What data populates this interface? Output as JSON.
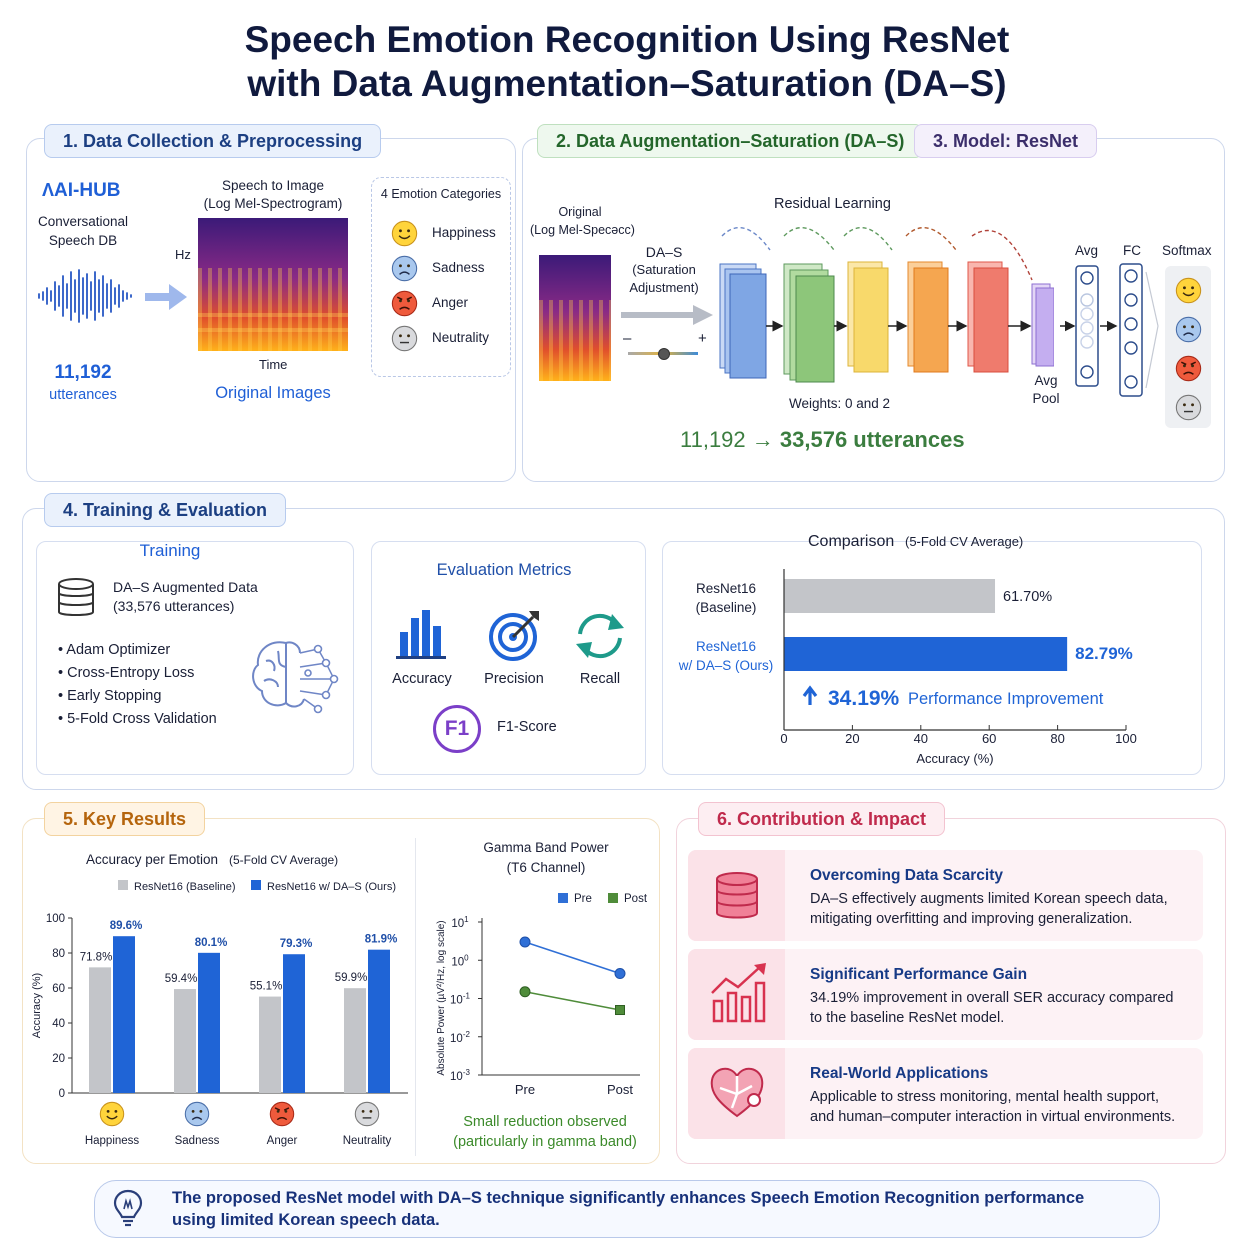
{
  "title": {
    "line1": "Speech Emotion Recognition Using ResNet",
    "line2": "with Data Augmentation–Saturation (DA–S)"
  },
  "colors": {
    "navy": "#101a3e",
    "blue": "#1f64d6",
    "green": "#3b7d3f",
    "gray_bar": "#c3c5c9",
    "pink": "#c02a4c",
    "orange": "#b5650d"
  },
  "section1": {
    "tag": "1.  Data Collection & Preprocessing",
    "logo": "AI-HUB",
    "db_line1": "Conversational",
    "db_line2": "Speech DB",
    "count": "11,192",
    "count_unit": "utterances",
    "spec_title1": "Speech to Image",
    "spec_title2": "(Log Mel-Spectrogram)",
    "hz_label": "Hz",
    "time_label": "Time",
    "original_images": "Original Images",
    "emotions_title": "4 Emotion Categories",
    "emotions": [
      "Happiness",
      "Sadness",
      "Anger",
      "Neutrality"
    ]
  },
  "section2": {
    "tag": "2.  Data Augmentation–Saturation (DA–S)",
    "original_line1": "Original",
    "original_line2": "(Log Mel-Specəcc)",
    "das_line1": "DA–S",
    "das_line2": "(Saturation",
    "das_line3": "Adjustment)",
    "minus": "–",
    "plus": "+",
    "result_from": "11,192",
    "arrow": "→",
    "result_to": "33,576 utterances"
  },
  "section3": {
    "tag": "3.  Model: ResNet",
    "residual_learning": "Residual Learning",
    "weights": "Weights: 0 and 2",
    "avg": "Avg",
    "fc": "FC",
    "softmax": "Softmax",
    "avg_pool_line1": "Avg",
    "avg_pool_line2": "Pool"
  },
  "section4": {
    "tag": "4.  Training & Evaluation",
    "training_title": "Training",
    "data_line1": "DA–S Augmented Data",
    "data_line2": "(33,576 utterances)",
    "bullets": [
      "Adam Optimizer",
      "Cross-Entropy Loss",
      "Early Stopping",
      "5-Fold Cross Validation"
    ],
    "metrics_title": "Evaluation Metrics",
    "metrics": [
      "Accuracy",
      "Precision",
      "Recall",
      "F1-Score"
    ],
    "f1_icon_text": "F1"
  },
  "section5": {
    "tag": "5.  Key Results",
    "gamma_title1": "Gamma Band Power",
    "gamma_title2": "(T6 Channel)",
    "gamma_note1": "Small reduction observed",
    "gamma_note2": "(particularly in gamma band)"
  },
  "section6": {
    "tag": "6.  Contribution & Impact",
    "items": [
      {
        "title": "Overcoming Data Scarcity",
        "line1": "DA–S effectively augments limited Korean speech data,",
        "line2": "mitigating overfitting and improving generalization."
      },
      {
        "title": "Significant Performance Gain",
        "line1": "34.19% improvement in overall SER accuracy compared",
        "line2": "to the baseline ResNet model."
      },
      {
        "title": "Real-World Applications",
        "line1": "Applicable to stress monitoring, mental health support,",
        "line2": "and human–computer interaction in virtual environments."
      }
    ]
  },
  "footer": {
    "line1": "The proposed ResNet model with DA–S technique significantly enhances Speech Emotion Recognition performance",
    "line2": "using limited Korean speech data."
  },
  "chart_data": [
    {
      "type": "bar",
      "orientation": "horizontal",
      "title": "Comparison",
      "subtitle": "(5-Fold CV Average)",
      "categories": [
        [
          "ResNet16",
          "(Baseline)"
        ],
        [
          "ResNet16",
          "w/ DA–S (Ours)"
        ]
      ],
      "values": [
        61.7,
        82.79
      ],
      "value_labels": [
        "61.70%",
        "82.79%"
      ],
      "xlabel": "Accuracy (%)",
      "xlim": [
        0,
        100
      ],
      "xticks": [
        0,
        20,
        40,
        60,
        80,
        100
      ],
      "annotation_value": "34.19%",
      "annotation_text": "Performance Improvement"
    },
    {
      "type": "bar",
      "title": "Accuracy per Emotion",
      "subtitle": "(5-Fold CV Average)",
      "categories": [
        "Happiness",
        "Sadness",
        "Anger",
        "Neutrality"
      ],
      "series": [
        {
          "name": "ResNet16 (Baseline)",
          "values": [
            71.8,
            59.4,
            55.1,
            59.9
          ],
          "labels": [
            "71.8%",
            "59.4%",
            "55.1%",
            "59.9%"
          ],
          "color": "#c3c5c9"
        },
        {
          "name": "ResNet16 w/ DA–S (Ours)",
          "values": [
            89.6,
            80.1,
            79.3,
            81.9
          ],
          "labels": [
            "89.6%",
            "80.1%",
            "79.3%",
            "81.9%"
          ],
          "color": "#1f64d6"
        }
      ],
      "ylabel": "Accuracy (%)",
      "ylim": [
        0,
        100
      ],
      "yticks": [
        0,
        20,
        40,
        60,
        80,
        100
      ],
      "legend": "top"
    },
    {
      "type": "line",
      "categories": [
        "Pre",
        "Post"
      ],
      "series": [
        {
          "name": "Pre",
          "values": [
            3.0,
            0.45
          ],
          "color": "#2f6fd6",
          "marker": "circle"
        },
        {
          "name": "Post",
          "values": [
            0.15,
            0.05
          ],
          "color": "#4f8c3a",
          "marker": "circle/square"
        }
      ],
      "ylabel": "Absolute Power (µV²/Hz, log scale)",
      "yscale": "log",
      "ylim": [
        0.001,
        10
      ],
      "ytick_labels": [
        [
          "10",
          "1"
        ],
        [
          "10",
          "0"
        ],
        [
          "10",
          "-1"
        ],
        [
          "10",
          "-2"
        ],
        [
          "10",
          "-3"
        ]
      ],
      "legend": "top-right"
    }
  ]
}
